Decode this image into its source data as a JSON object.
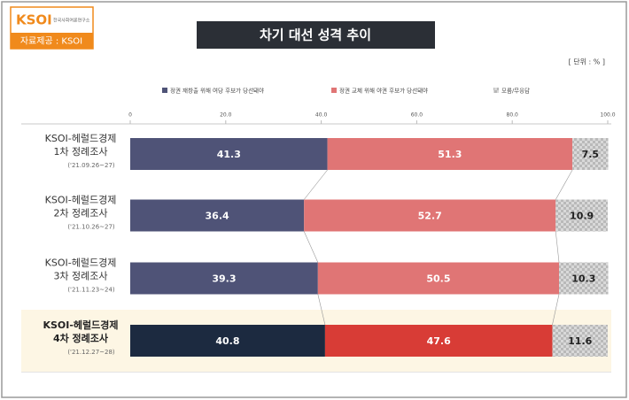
{
  "logo": {
    "name": "KSOI",
    "subtitle": "한국사회여론연구소",
    "source": "자료제공 : KSOI"
  },
  "chart_data": {
    "type": "stacked-bar-horizontal",
    "title": "차기 대선 성격 추이",
    "unit_note": "[ 단위 : % ]",
    "categories": [
      [
        "KSOI-헤럴드경제",
        "1차 정례조사"
      ],
      [
        "KSOI-헤럴드경제",
        "2차 정례조사"
      ],
      [
        "KSOI-헤럴드경제",
        "3차 정례조사"
      ],
      [
        "KSOI-헤럴드경제",
        "4차 정례조사"
      ]
    ],
    "dates": [
      "('21.09.26~27)",
      "('21.10.26~27)",
      "('21.11.23~24)",
      "('21.12.27~28)"
    ],
    "series": [
      {
        "name": "정권 재창출 위해 여당 후보가 당선돼야",
        "color": "#4f5377",
        "colors": [
          "#4f5377",
          "#4f5377",
          "#4f5377",
          "#1c2a40"
        ],
        "values": [
          41.3,
          36.4,
          39.3,
          40.8
        ]
      },
      {
        "name": "정권 교체 위해 야권 후보가 당선돼야",
        "color": "#e07575",
        "colors": [
          "#e07575",
          "#e07575",
          "#e07575",
          "#d83c36"
        ],
        "values": [
          51.3,
          52.7,
          50.5,
          47.6
        ]
      },
      {
        "name": "모름/무응답",
        "color": "#cfcfcf",
        "colors": [
          "#d4d4d4",
          "#cccccc",
          "#cccccc",
          "#c4c4c4"
        ],
        "values": [
          7.5,
          10.9,
          10.3,
          11.6
        ]
      }
    ],
    "xlim": [
      0,
      100
    ],
    "xticks": [
      0,
      {
        "value": 20,
        "label": "20.0"
      },
      {
        "value": 40,
        "label": "40.0"
      },
      {
        "value": 60,
        "label": "60.0"
      },
      {
        "value": 80,
        "label": "80.0"
      },
      {
        "value": 100,
        "label": "100.0"
      }
    ],
    "highlight_row_color": "#fdf6e4"
  }
}
